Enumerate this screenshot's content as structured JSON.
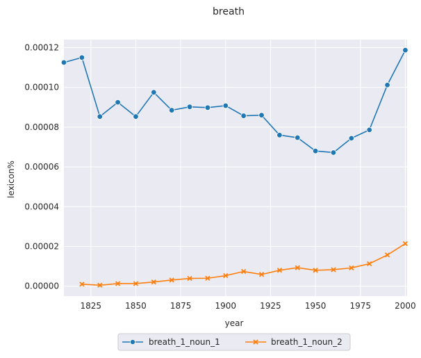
{
  "chart_data": {
    "type": "line",
    "title": "breath",
    "xlabel": "year",
    "ylabel": "lexicon%",
    "xlim": [
      1810,
      2001
    ],
    "ylim": [
      -5e-06,
      0.000124
    ],
    "x_ticks": [
      1825,
      1850,
      1875,
      1900,
      1925,
      1950,
      1975,
      2000
    ],
    "x_tick_labels": [
      "1825",
      "1850",
      "1875",
      "1900",
      "1925",
      "1950",
      "1975",
      "2000"
    ],
    "y_ticks": [
      0,
      2e-05,
      4e-05,
      6e-05,
      8e-05,
      0.0001,
      0.00012
    ],
    "y_tick_labels": [
      "0.00000",
      "0.00002",
      "0.00004",
      "0.00006",
      "0.00008",
      "0.00010",
      "0.00012"
    ],
    "grid": true,
    "legend_position": "bottom-center",
    "background": "#eaeaf2",
    "series": [
      {
        "name": "breath_1_noun_1",
        "color": "#1f77b4",
        "marker": "circle",
        "x": [
          1810,
          1820,
          1830,
          1840,
          1850,
          1860,
          1870,
          1880,
          1890,
          1900,
          1910,
          1920,
          1930,
          1940,
          1950,
          1960,
          1970,
          1980,
          1990,
          2000
        ],
        "values": [
          0.0001125,
          0.000115,
          8.53e-05,
          9.25e-05,
          8.53e-05,
          9.75e-05,
          8.85e-05,
          9.02e-05,
          8.98e-05,
          9.08e-05,
          8.57e-05,
          8.6e-05,
          7.6e-05,
          7.47e-05,
          6.8e-05,
          6.72e-05,
          7.44e-05,
          7.86e-05,
          0.0001012,
          0.0001187
        ]
      },
      {
        "name": "breath_1_noun_2",
        "color": "#ff7f0e",
        "marker": "x",
        "x": [
          1820,
          1830,
          1840,
          1850,
          1860,
          1870,
          1880,
          1890,
          1900,
          1910,
          1920,
          1930,
          1940,
          1950,
          1960,
          1970,
          1980,
          1990,
          2000
        ],
        "values": [
          1e-06,
          5e-07,
          1.3e-06,
          1.3e-06,
          2.1e-06,
          3.1e-06,
          3.9e-06,
          4e-06,
          5.3e-06,
          7.4e-06,
          5.9e-06,
          8e-06,
          9.3e-06,
          8e-06,
          8.3e-06,
          9.2e-06,
          1.13e-05,
          1.57e-05,
          2.14e-05
        ]
      }
    ]
  }
}
